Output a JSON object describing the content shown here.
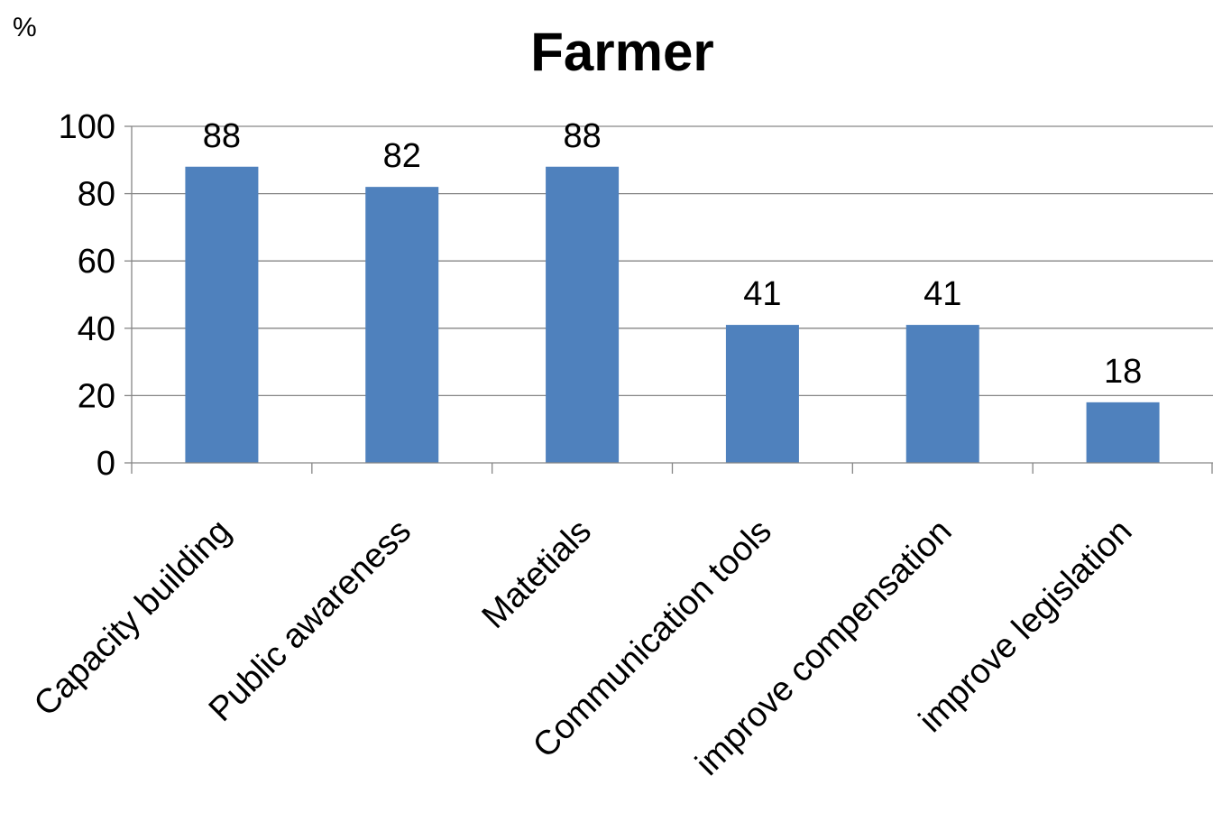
{
  "chart_data": {
    "type": "bar",
    "title": "Farmer",
    "ylabel": "%",
    "xlabel": "",
    "categories": [
      "Capacity building",
      "Public awareness",
      "Matetials",
      "Communication tools",
      "improve compensation",
      "improve legislation"
    ],
    "values": [
      88,
      82,
      88,
      41,
      41,
      18
    ],
    "data_labels": [
      "88",
      "82",
      "88",
      "41",
      "41",
      "18"
    ],
    "ylim": [
      0,
      100
    ],
    "yticks": [
      0,
      20,
      40,
      60,
      80,
      100
    ],
    "ytick_labels": [
      "0",
      "20",
      "40",
      "60",
      "80",
      "100"
    ],
    "grid": true,
    "legend": "none",
    "bar_color": "#4f81bd",
    "grid_color": "#868686"
  }
}
